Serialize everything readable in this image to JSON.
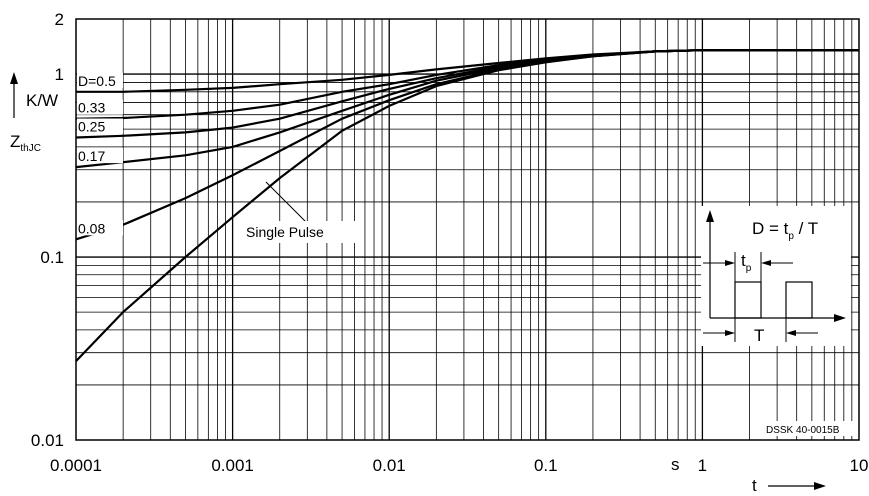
{
  "chart_data": {
    "type": "line",
    "x_scale": "log",
    "y_scale": "log",
    "xlim": [
      0.0001,
      10
    ],
    "ylim": [
      0.01,
      2
    ],
    "grid": true,
    "x_ticks": [
      "0.0001",
      "0.001",
      "0.01",
      "0.1",
      "1",
      "10"
    ],
    "y_ticks": [
      "2",
      "1",
      "0.1",
      "0.01"
    ],
    "x_unit": "s",
    "x_symbol": "t",
    "y_unit": "K/W",
    "y_symbol_main": "Z",
    "y_symbol_sub": "thJC",
    "series": [
      {
        "name": "D=0.5",
        "x": [
          0.0001,
          0.0002,
          0.0005,
          0.001,
          0.002,
          0.005,
          0.01,
          0.02,
          0.05,
          0.1,
          0.2,
          0.5,
          1,
          2,
          5,
          10
        ],
        "y": [
          0.8,
          0.8,
          0.82,
          0.84,
          0.88,
          0.93,
          0.99,
          1.06,
          1.15,
          1.22,
          1.28,
          1.33,
          1.35,
          1.35,
          1.35,
          1.35
        ]
      },
      {
        "name": "0.33",
        "x": [
          0.0001,
          0.0002,
          0.0005,
          0.001,
          0.002,
          0.005,
          0.01,
          0.02,
          0.05,
          0.1,
          0.2,
          0.5,
          1,
          2,
          5,
          10
        ],
        "y": [
          0.57,
          0.575,
          0.6,
          0.63,
          0.68,
          0.8,
          0.88,
          0.99,
          1.12,
          1.2,
          1.27,
          1.33,
          1.35,
          1.35,
          1.35,
          1.35
        ]
      },
      {
        "name": "0.25",
        "x": [
          0.0001,
          0.0002,
          0.0005,
          0.001,
          0.002,
          0.005,
          0.01,
          0.02,
          0.05,
          0.1,
          0.2,
          0.5,
          1,
          2,
          5,
          10
        ],
        "y": [
          0.45,
          0.46,
          0.48,
          0.51,
          0.57,
          0.71,
          0.83,
          0.95,
          1.1,
          1.19,
          1.26,
          1.33,
          1.35,
          1.35,
          1.35,
          1.35
        ]
      },
      {
        "name": "0.17",
        "x": [
          0.0001,
          0.0002,
          0.0005,
          0.001,
          0.002,
          0.005,
          0.01,
          0.02,
          0.05,
          0.1,
          0.2,
          0.5,
          1,
          2,
          5,
          10
        ],
        "y": [
          0.31,
          0.33,
          0.36,
          0.4,
          0.48,
          0.63,
          0.77,
          0.92,
          1.08,
          1.18,
          1.26,
          1.33,
          1.35,
          1.35,
          1.35,
          1.35
        ]
      },
      {
        "name": "0.08",
        "x": [
          0.0001,
          0.0002,
          0.0005,
          0.001,
          0.002,
          0.005,
          0.01,
          0.02,
          0.05,
          0.1,
          0.2,
          0.5,
          1,
          2,
          5,
          10
        ],
        "y": [
          0.125,
          0.15,
          0.21,
          0.28,
          0.38,
          0.57,
          0.72,
          0.88,
          1.06,
          1.17,
          1.25,
          1.33,
          1.35,
          1.35,
          1.35,
          1.35
        ]
      },
      {
        "name": "Single Pulse",
        "x": [
          0.0001,
          0.0002,
          0.0005,
          0.001,
          0.002,
          0.005,
          0.01,
          0.02,
          0.05,
          0.1,
          0.2,
          0.5,
          1,
          2,
          5,
          10
        ],
        "y": [
          0.027,
          0.05,
          0.1,
          0.165,
          0.27,
          0.49,
          0.67,
          0.86,
          1.05,
          1.16,
          1.25,
          1.33,
          1.35,
          1.35,
          1.35,
          1.35
        ]
      }
    ],
    "annotations": {
      "single_pulse_label": "Single Pulse",
      "formula_main": "D = t",
      "formula_sub": "p",
      "formula_tail": " / T",
      "tp_main": "t",
      "tp_sub": "p",
      "period_label": "T",
      "doc_code": "DSSK 40-0015B"
    }
  }
}
